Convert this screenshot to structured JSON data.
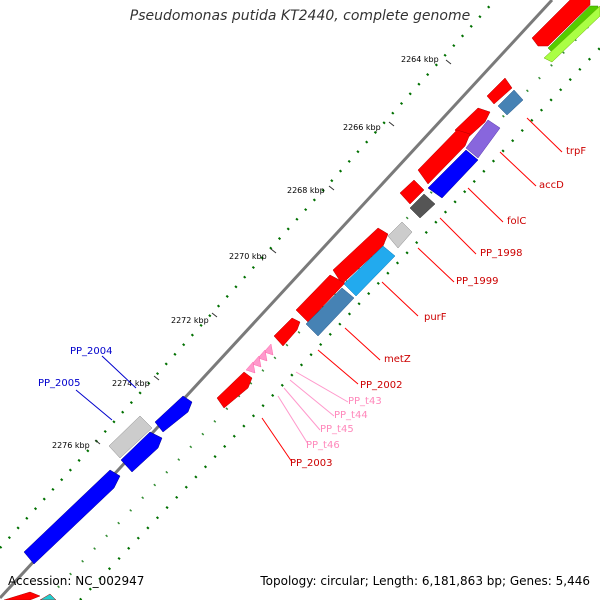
{
  "title": "Pseudomonas putida KT2440, complete genome",
  "footer": {
    "accession": "Accession: NC_002947",
    "summary": "Topology: circular; Length: 6,181,863 bp; Genes: 5,446"
  },
  "ticks": [
    "2264 kbp",
    "2266 kbp",
    "2268 kbp",
    "2270 kbp",
    "2272 kbp",
    "2274 kbp",
    "2276 kbp"
  ],
  "labels": {
    "trpF": "trpF",
    "accD": "accD",
    "folC": "folC",
    "pp1998": "PP_1998",
    "pp1999": "PP_1999",
    "purF": "purF",
    "metZ": "metZ",
    "pp2002": "PP_2002",
    "t43": "PP_t43",
    "t44": "PP_t44",
    "t45": "PP_t45",
    "t46": "PP_t46",
    "pp2003": "PP_2003",
    "pp2004": "PP_2004",
    "pp2005": "PP_2005"
  },
  "colors": {
    "forward_gene": "#ff0000",
    "reverse_gene": "#0000ff",
    "trna": "#ff99cc",
    "backbone": "#808080",
    "gc_dots": "#008000"
  }
}
